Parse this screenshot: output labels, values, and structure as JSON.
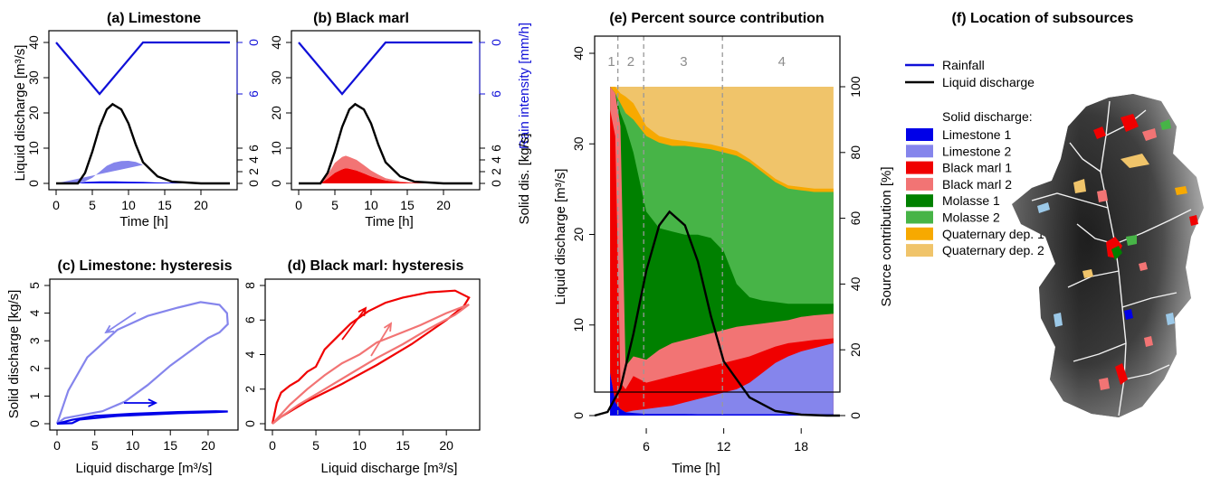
{
  "panels": {
    "a": {
      "title": "(a) Limestone"
    },
    "b": {
      "title": "(b) Black marl"
    },
    "c": {
      "title": "(c) Limestone: hysteresis"
    },
    "d": {
      "title": "(d) Black marl: hysteresis"
    },
    "e": {
      "title": "(e) Percent source contribution"
    },
    "f": {
      "title": "(f) Location of subsources"
    }
  },
  "labels": {
    "time": "Time [h]",
    "liquid_discharge": "Liquid discharge [m³/s]",
    "rain_intensity": "Rain intensity [mm/h]",
    "solid_dis": "Solid dis. [kg/s]",
    "solid_discharge": "Solid discharge [kg/s]",
    "source_contribution": "Source contribution [%]"
  },
  "colors": {
    "rainfall": "#1010d8",
    "liquid": "#000000",
    "limestone1": "#0000e8",
    "limestone2": "#8585ec",
    "blackmarl1": "#f00000",
    "blackmarl2": "#f27474",
    "molasse1": "#008000",
    "molasse2": "#47b447",
    "quat1": "#f7a900",
    "quat2": "#f0c46a"
  },
  "legend": {
    "rainfall": "Rainfall",
    "liquid": "Liquid discharge",
    "solid_header": "Solid discharge:",
    "items": [
      {
        "key": "limestone1",
        "label": "Limestone 1"
      },
      {
        "key": "limestone2",
        "label": "Limestone 2"
      },
      {
        "key": "blackmarl1",
        "label": "Black marl 1"
      },
      {
        "key": "blackmarl2",
        "label": "Black marl 2"
      },
      {
        "key": "molasse1",
        "label": "Molasse 1"
      },
      {
        "key": "molasse2",
        "label": "Molasse 2"
      },
      {
        "key": "quat1",
        "label": "Quaternary dep. 1"
      },
      {
        "key": "quat2",
        "label": "Quaternary dep. 2"
      }
    ]
  },
  "chart_data": [
    {
      "id": "a",
      "type": "area",
      "xlabel": "Time [h]",
      "ylabel": "Liquid discharge [m³/s]",
      "xlim": [
        0,
        24
      ],
      "ylim": [
        0,
        40
      ],
      "xticks": [
        0,
        5,
        10,
        15,
        20
      ],
      "yticks": [
        0,
        10,
        20,
        30,
        40
      ],
      "rain_axis": {
        "label": "Rain intensity [mm/h]",
        "ticks": [
          0,
          6
        ]
      },
      "solid_axis": {
        "label": "Solid dis. [kg/s]",
        "ticks": [
          0,
          2,
          4,
          6
        ]
      },
      "rainfall": {
        "x": [
          0,
          6,
          12,
          24
        ],
        "y": [
          0,
          6,
          0,
          0
        ]
      },
      "liquid": {
        "x": [
          0,
          3,
          4,
          5,
          6,
          7,
          7.8,
          9,
          10,
          11,
          12,
          14,
          16,
          20,
          24
        ],
        "y": [
          0,
          0,
          3,
          9,
          16,
          21,
          22.5,
          21,
          17,
          11,
          6,
          2,
          0.5,
          0,
          0
        ]
      },
      "solid_stack": [
        {
          "source": "Limestone 1",
          "x": [
            0,
            3,
            4,
            6,
            8,
            10,
            12,
            14,
            16,
            20,
            24
          ],
          "y": [
            0,
            0,
            0.25,
            0.35,
            0.35,
            0.3,
            0.25,
            0.15,
            0.1,
            0.05,
            0
          ]
        },
        {
          "source": "Limestone 2",
          "x": [
            0,
            3,
            4,
            5,
            6,
            7,
            8,
            9,
            10,
            11,
            12,
            13,
            14,
            15,
            16,
            17,
            18,
            20,
            22,
            24
          ],
          "y": [
            0,
            0,
            0.1,
            0.6,
            1.6,
            2.7,
            3.3,
            3.65,
            3.75,
            3.6,
            3.15,
            2.5,
            1.8,
            1.2,
            0.75,
            0.5,
            0.3,
            0.12,
            0.05,
            0
          ]
        }
      ]
    },
    {
      "id": "b",
      "type": "area",
      "xlabel": "Time [h]",
      "xlim": [
        0,
        24
      ],
      "ylim": [
        0,
        40
      ],
      "xticks": [
        0,
        5,
        10,
        15,
        20
      ],
      "yticks": [
        0,
        10,
        20,
        30,
        40
      ],
      "rain_axis": {
        "label": "Rain intensity [mm/h]",
        "ticks": [
          0,
          6
        ]
      },
      "solid_axis": {
        "label": "Solid dis. [kg/s]",
        "ticks": [
          0,
          2,
          4,
          6
        ]
      },
      "rainfall": {
        "x": [
          0,
          6,
          12,
          24
        ],
        "y": [
          0,
          6,
          0,
          0
        ]
      },
      "liquid": {
        "x": [
          0,
          3,
          4,
          5,
          6,
          7,
          7.8,
          9,
          10,
          11,
          12,
          14,
          16,
          20,
          24
        ],
        "y": [
          0,
          0,
          3,
          9,
          16,
          21,
          22.5,
          21,
          17,
          11,
          6,
          2,
          0.5,
          0,
          0
        ]
      },
      "solid_stack": [
        {
          "source": "Black marl 1",
          "x": [
            0,
            3,
            4,
            5,
            6,
            6.5,
            7,
            8,
            9,
            10,
            11,
            12,
            14,
            16,
            18,
            24
          ],
          "y": [
            0,
            0,
            0.8,
            1.8,
            2.4,
            2.6,
            2.5,
            2.2,
            1.7,
            1.2,
            0.8,
            0.5,
            0.2,
            0.08,
            0.03,
            0
          ]
        },
        {
          "source": "Black marl 2",
          "x": [
            0,
            3,
            4,
            5,
            6,
            6.5,
            7,
            8,
            9,
            10,
            11,
            12,
            14,
            16,
            18,
            24
          ],
          "y": [
            0,
            0,
            0.7,
            1.7,
            2.1,
            2.1,
            2.0,
            1.8,
            1.4,
            1.0,
            0.7,
            0.4,
            0.15,
            0.05,
            0.02,
            0
          ]
        }
      ]
    },
    {
      "id": "c",
      "type": "line",
      "xlabel": "Liquid discharge [m³/s]",
      "ylabel": "Solid discharge [kg/s]",
      "xlim": [
        0,
        23
      ],
      "ylim": [
        0,
        5
      ],
      "xticks": [
        0,
        5,
        10,
        15,
        20
      ],
      "yticks": [
        0,
        1,
        2,
        3,
        4,
        5
      ],
      "series": [
        {
          "source": "Limestone 2",
          "x": [
            0,
            1,
            3,
            6,
            9,
            12,
            15,
            18,
            20,
            21.5,
            22.6,
            22.5,
            21.5,
            19,
            16,
            12,
            8,
            4,
            1.5,
            0.5,
            0
          ],
          "y": [
            0,
            0.2,
            0.3,
            0.45,
            0.8,
            1.4,
            2.1,
            2.7,
            3.1,
            3.3,
            3.6,
            4.0,
            4.3,
            4.4,
            4.2,
            3.9,
            3.4,
            2.4,
            1.2,
            0.4,
            0
          ]
        },
        {
          "source": "Limestone 1",
          "x": [
            0,
            2,
            3,
            8,
            16,
            21,
            22.6,
            21,
            16,
            10,
            5,
            2,
            0
          ],
          "y": [
            0,
            0.02,
            0.15,
            0.28,
            0.38,
            0.42,
            0.44,
            0.45,
            0.42,
            0.36,
            0.28,
            0.14,
            0
          ]
        }
      ]
    },
    {
      "id": "d",
      "type": "line",
      "xlabel": "Liquid discharge [m³/s]",
      "xlim": [
        0,
        23
      ],
      "ylim": [
        0,
        8
      ],
      "xticks": [
        0,
        5,
        10,
        15,
        20
      ],
      "yticks": [
        0,
        2,
        4,
        6,
        8
      ],
      "series": [
        {
          "source": "Black marl 1",
          "x": [
            0,
            0.5,
            1,
            2,
            3,
            4,
            5,
            6,
            7,
            9,
            11,
            13,
            15,
            18,
            21,
            22.6,
            22,
            20,
            16,
            12,
            8,
            4,
            1,
            0
          ],
          "y": [
            0,
            1.2,
            1.8,
            2.2,
            2.5,
            3.0,
            3.3,
            4.3,
            4.8,
            5.8,
            6.5,
            7.0,
            7.3,
            7.6,
            7.7,
            7.3,
            6.8,
            6.0,
            4.6,
            3.4,
            2.3,
            1.3,
            0.4,
            0
          ]
        },
        {
          "source": "Black marl 2",
          "x": [
            0,
            2,
            4,
            6,
            8,
            10,
            12,
            14,
            17,
            20,
            22.6,
            21,
            18,
            15,
            12,
            9,
            6,
            3,
            1,
            0
          ],
          "y": [
            0,
            1.1,
            2.0,
            2.8,
            3.5,
            4.0,
            4.7,
            5.1,
            5.7,
            6.4,
            6.9,
            6.3,
            5.5,
            4.6,
            3.8,
            2.9,
            2.0,
            1.1,
            0.4,
            0
          ]
        }
      ]
    },
    {
      "id": "e",
      "type": "area",
      "xlabel": "Time [h]",
      "ylabel": "Liquid discharge [m³/s]",
      "ylabel_right": "Source contribution [%]",
      "xlim": [
        2,
        21
      ],
      "ylim": [
        0,
        40
      ],
      "xticks": [
        6,
        12,
        18
      ],
      "yticks": [
        0,
        10,
        20,
        30,
        40
      ],
      "right_ylim": [
        0,
        110
      ],
      "right_yticks": [
        0,
        20,
        40,
        60,
        80,
        100
      ],
      "phase_lines": [
        3.8,
        5.8,
        11.9
      ],
      "phases": [
        {
          "label": "1",
          "x": 3.3
        },
        {
          "label": "2",
          "x": 4.8
        },
        {
          "label": "3",
          "x": 8.9
        },
        {
          "label": "4",
          "x": 16.5
        }
      ],
      "x": [
        3.2,
        3.6,
        4.0,
        4.4,
        5.0,
        6.0,
        7.0,
        8.0,
        9.0,
        10.0,
        11.0,
        12.0,
        13.0,
        14.0,
        15.0,
        16.0,
        17.0,
        18.0,
        19.0,
        20.5
      ],
      "cumulative_percent": {
        "Limestone 1": [
          13,
          4,
          2,
          1,
          0.8,
          0.5,
          0.5,
          0.5,
          0.5,
          0.4,
          0.4,
          0.4,
          0.4,
          0.4,
          0.4,
          0.4,
          0.4,
          0.4,
          0.4,
          0.4
        ],
        "Limestone 2": [
          13,
          4,
          2,
          1,
          1.5,
          2,
          2.5,
          3,
          4,
          5,
          6,
          7,
          8,
          10,
          13,
          16,
          18,
          19.5,
          20.5,
          22
        ],
        "Black marl 1": [
          93,
          85,
          10,
          8,
          12,
          10,
          11,
          12,
          13,
          14,
          15,
          16,
          17,
          18,
          19.5,
          21,
          22,
          22.5,
          23,
          23.5
        ],
        "Black marl 2": [
          100,
          98,
          88,
          15,
          18,
          17,
          20,
          22,
          23,
          24,
          25,
          26,
          27,
          27.5,
          28,
          28.5,
          29,
          30,
          30.5,
          31
        ],
        "Molasse 1": [
          100,
          98,
          92,
          88,
          80,
          62,
          57,
          56,
          55,
          55,
          54,
          50,
          40,
          36,
          35,
          34.5,
          34,
          34,
          34,
          34
        ],
        "Molasse 2": [
          100,
          98,
          95,
          92,
          90,
          85,
          83,
          82,
          82,
          81.5,
          81,
          80,
          79,
          77,
          74,
          71,
          69,
          68.5,
          68,
          68
        ],
        "Quaternary dep. 1": [
          100,
          100,
          98,
          97,
          95,
          88,
          85,
          84,
          83.5,
          83,
          82.5,
          81.5,
          80.5,
          78,
          75,
          72,
          70,
          69.5,
          69,
          69
        ],
        "Quaternary dep. 2": [
          100,
          100,
          100,
          100,
          100,
          100,
          100,
          100,
          100,
          100,
          100,
          100,
          100,
          100,
          100,
          100,
          100,
          100,
          100,
          100
        ]
      },
      "liquid": {
        "x": [
          2,
          3,
          4,
          5,
          6,
          7,
          7.8,
          9,
          10,
          11,
          12,
          14,
          16,
          18,
          20,
          21
        ],
        "y": [
          0,
          0.4,
          3,
          9,
          16,
          21,
          22.5,
          21,
          17,
          11,
          6,
          2,
          0.5,
          0.1,
          0,
          0
        ]
      }
    }
  ]
}
